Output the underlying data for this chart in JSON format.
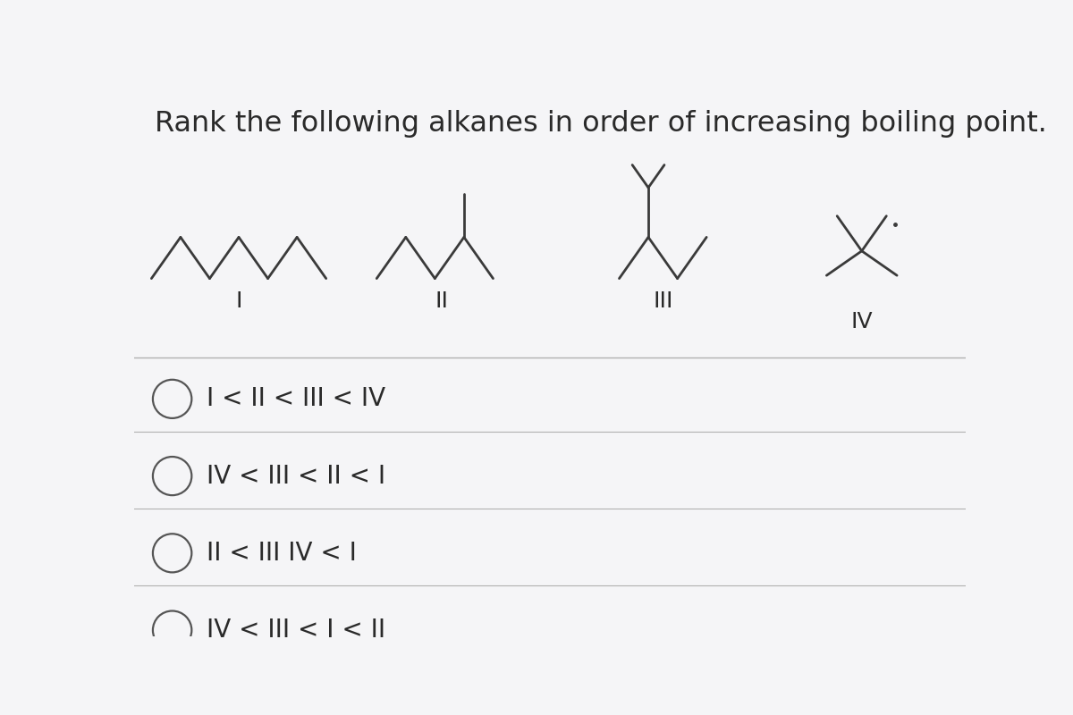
{
  "title": "Rank the following alkanes in order of increasing boiling point.",
  "title_fontsize": 23,
  "background_color": "#f5f5f7",
  "text_color": "#2a2a2a",
  "line_color": "#3a3a3a",
  "line_width": 2.0,
  "choices": [
    "I < II < III < IV",
    "IV < III < II < I",
    "II < III IV < I",
    "IV < III < I < II"
  ],
  "circle_color": "#555555",
  "divider_color": "#b0b0b0",
  "choice_fontsize": 20,
  "label_fontsize": 18
}
